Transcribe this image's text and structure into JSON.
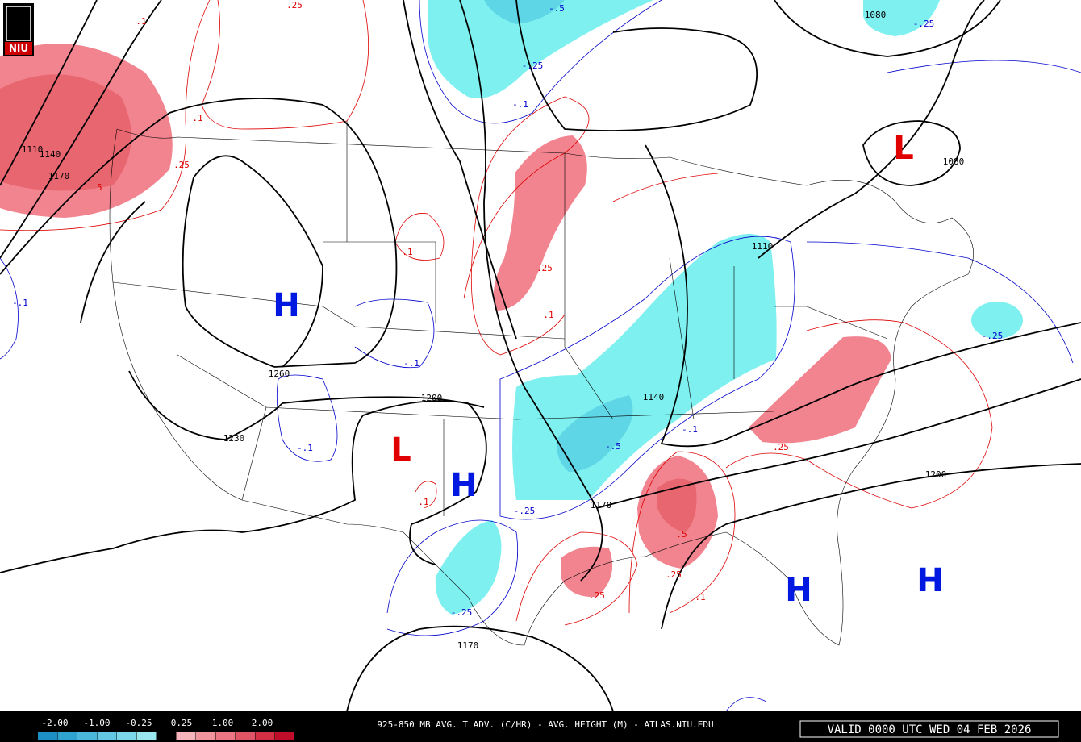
{
  "logo": "NIU",
  "legend": {
    "labels": [
      "-2.00",
      "-1.00",
      "-0.25",
      "0.25",
      "1.00",
      "2.00"
    ]
  },
  "caption": "925-850 MB AVG. T ADV. (C/HR) - AVG. HEIGHT (M) - ATLAS.NIU.EDU",
  "valid": "VALID 0000 UTC WED 04 FEB 2026",
  "highs": [
    "H",
    "H",
    "H",
    "H"
  ],
  "lows": [
    "L",
    "L"
  ],
  "height_labels": [
    "1080",
    "1080",
    "1110",
    "1140",
    "1170",
    "1260",
    "1200",
    "1230",
    "1140",
    "1170",
    "1200",
    "1170",
    "1110"
  ],
  "warm_labels": [
    ".25",
    ".1",
    ".25",
    ".5",
    ".1",
    ".25",
    ".1",
    ".25",
    ".1",
    ".5",
    ".25",
    ".25",
    ".1",
    ".1"
  ],
  "cold_labels": [
    "-.5",
    "-.25",
    "-.25",
    "-.1",
    "-.1",
    "-.1",
    "-.1",
    "-.5",
    "-.1",
    "-.25",
    "-.25",
    "-.25"
  ]
}
